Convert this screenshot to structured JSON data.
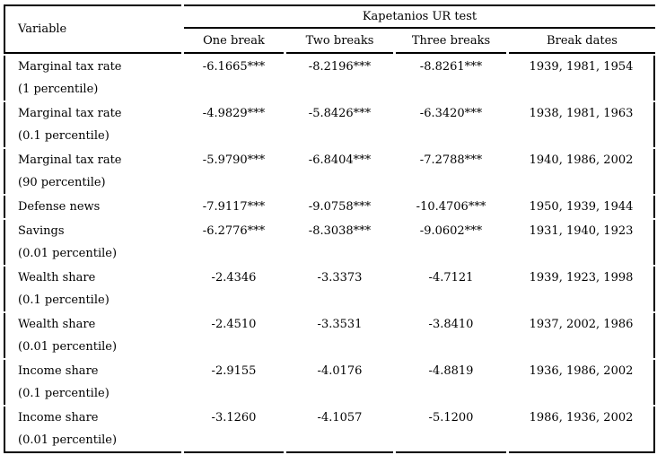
{
  "table": {
    "group_header": "Kapetanios UR test",
    "columns": [
      "Variable",
      "One break",
      "Two breaks",
      "Three breaks",
      "Break dates"
    ],
    "rows": [
      {
        "variable": "Marginal tax rate",
        "note": "(1 percentile)",
        "one_break": "-6.1665***",
        "two_breaks": "-8.2196***",
        "three_breaks": "-8.8261***",
        "break_dates": "1939, 1981, 1954"
      },
      {
        "variable": "Marginal tax rate",
        "note": "(0.1 percentile)",
        "one_break": "-4.9829***",
        "two_breaks": "-5.8426***",
        "three_breaks": "-6.3420***",
        "break_dates": "1938, 1981, 1963"
      },
      {
        "variable": "Marginal tax rate",
        "note": "(90 percentile)",
        "one_break": "-5.9790***",
        "two_breaks": "-6.8404***",
        "three_breaks": "-7.2788***",
        "break_dates": "1940, 1986, 2002"
      },
      {
        "variable": "Defense news",
        "note": "",
        "one_break": "-7.9117***",
        "two_breaks": "-9.0758***",
        "three_breaks": "-10.4706***",
        "break_dates": "1950, 1939, 1944"
      },
      {
        "variable": "Savings",
        "note": "(0.01 percentile)",
        "one_break": "-6.2776***",
        "two_breaks": "-8.3038***",
        "three_breaks": "-9.0602***",
        "break_dates": "1931, 1940, 1923"
      },
      {
        "variable": "Wealth share",
        "note": "(0.1 percentile)",
        "one_break": "-2.4346",
        "two_breaks": "-3.3373",
        "three_breaks": "-4.7121",
        "break_dates": "1939, 1923, 1998"
      },
      {
        "variable": "Wealth share",
        "note": "(0.01 percentile)",
        "one_break": "-2.4510",
        "two_breaks": "-3.3531",
        "three_breaks": "-3.8410",
        "break_dates": "1937, 2002, 1986"
      },
      {
        "variable": "Income share",
        "note": "(0.1 percentile)",
        "one_break": "-2.9155",
        "two_breaks": "-4.0176",
        "three_breaks": "-4.8819",
        "break_dates": "1936, 1986, 2002"
      },
      {
        "variable": "Income share",
        "note": "(0.01 percentile)",
        "one_break": "-3.1260",
        "two_breaks": "-4.1057",
        "three_breaks": "-5.1200",
        "break_dates": "1986, 1936, 2002"
      }
    ],
    "colors": {
      "text": "#000000",
      "background": "#ffffff",
      "rule": "#000000"
    }
  }
}
